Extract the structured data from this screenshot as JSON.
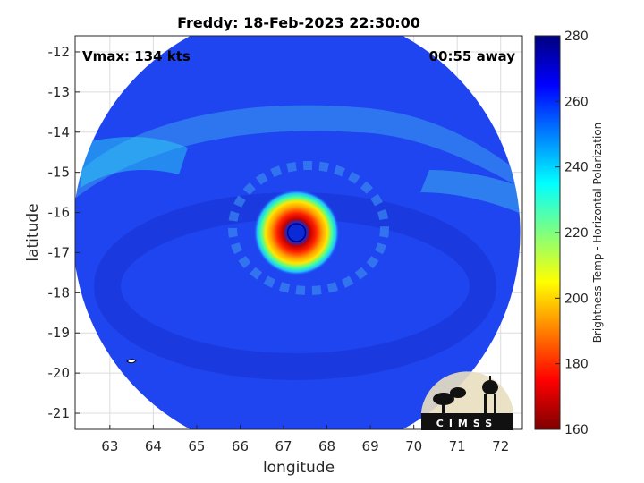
{
  "chart_data": {
    "type": "heatmap",
    "title": "Freddy: 18-Feb-2023 22:30:00",
    "xlabel": "longitude",
    "ylabel": "latitude",
    "xlim": [
      62.2,
      72.5
    ],
    "ylim": [
      -21.4,
      -11.6
    ],
    "xticks": [
      63,
      64,
      65,
      66,
      67,
      68,
      69,
      70,
      71,
      72
    ],
    "yticks": [
      -12,
      -13,
      -14,
      -15,
      -16,
      -17,
      -18,
      -19,
      -20,
      -21
    ],
    "grid": true,
    "annotations": {
      "vmax": "Vmax: 134 kts",
      "time_away": "00:55 away"
    },
    "colorbar": {
      "label": "Brightness Temp - Horizontal Polarization",
      "range": [
        160,
        280
      ],
      "ticks": [
        280,
        260,
        240,
        220,
        200,
        180,
        160
      ]
    },
    "storm_center": {
      "lon": 67.3,
      "lat": -16.5
    },
    "eye_min_temp_approx": 175,
    "swath_center": {
      "lon": 67.3,
      "lat": -16.5
    },
    "swath_background_temp_approx": 262,
    "logo": "CIMSS"
  },
  "colors": {
    "scale": [
      "#7f0000",
      "#ff0000",
      "#ffff00",
      "#00ffff",
      "#0000ff",
      "#00007f"
    ],
    "swath_base": "#1f45f0"
  }
}
